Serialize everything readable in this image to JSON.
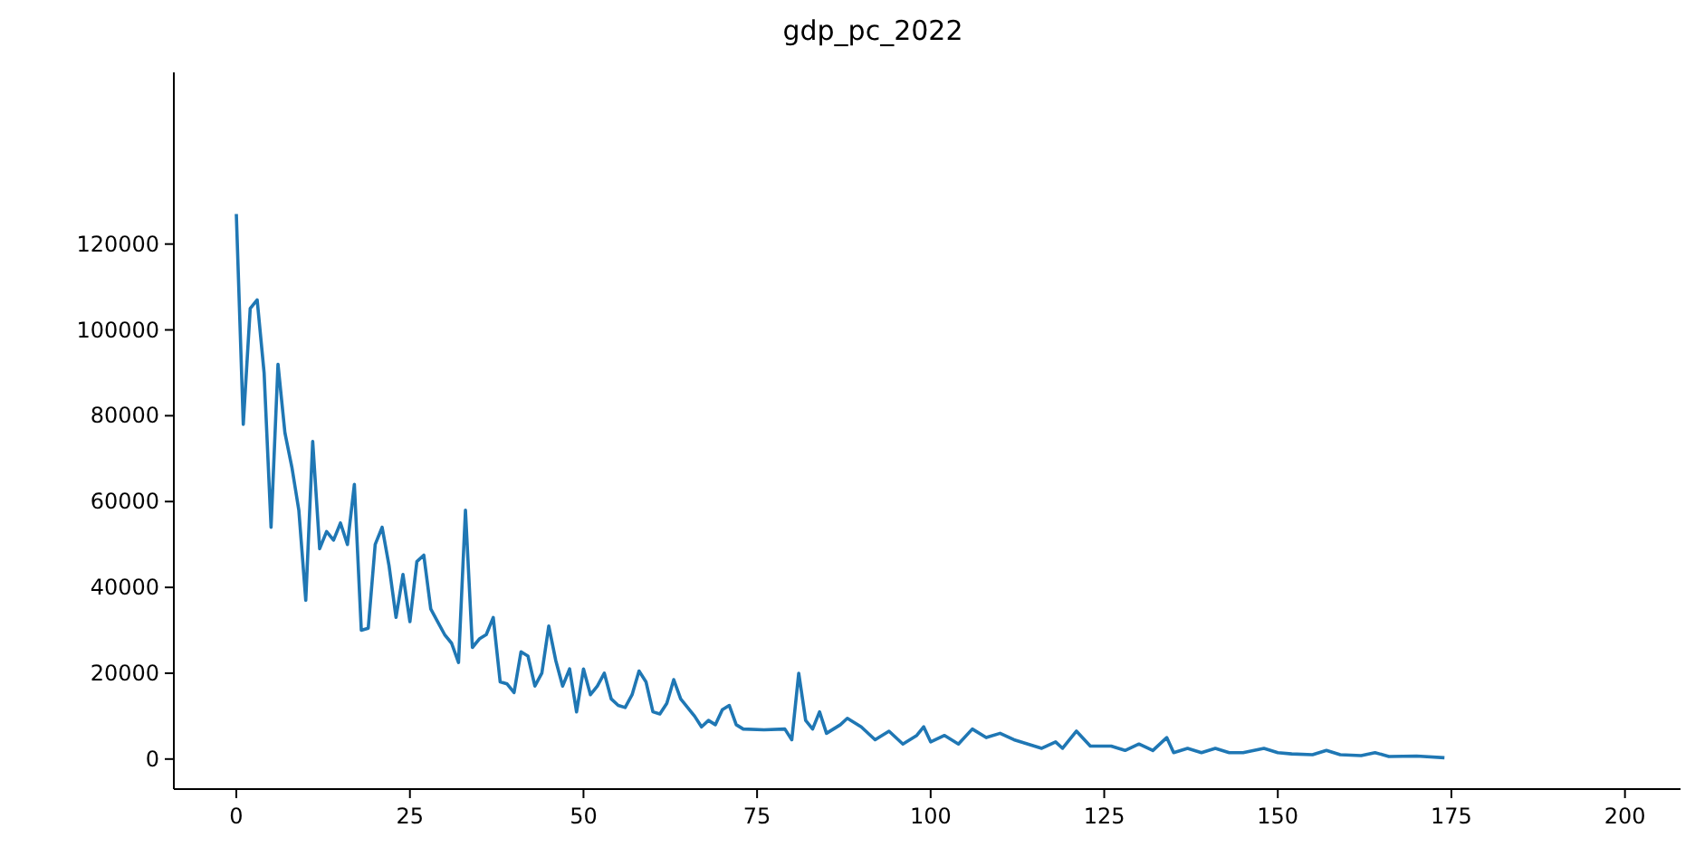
{
  "chart_data": {
    "type": "line",
    "title": "gdp_pc_2022",
    "xlim": [
      -9,
      208
    ],
    "ylim": [
      -7000,
      160000
    ],
    "xticks": [
      0,
      25,
      50,
      75,
      100,
      125,
      150,
      175,
      200
    ],
    "yticks": [
      0,
      20000,
      40000,
      60000,
      80000,
      100000,
      120000
    ],
    "marker": "none",
    "line_style": "solid",
    "series": [
      {
        "color": "#1f77b4",
        "x": [
          0,
          1,
          2,
          3,
          4,
          5,
          6,
          7,
          8,
          9,
          10,
          11,
          12,
          13,
          14,
          15,
          16,
          17,
          18,
          19,
          20,
          21,
          22,
          23,
          24,
          25,
          26,
          27,
          28,
          29,
          30,
          31,
          32,
          33,
          34,
          35,
          36,
          37,
          38,
          39,
          40,
          41,
          42,
          43,
          44,
          45,
          46,
          47,
          48,
          49,
          50,
          51,
          52,
          53,
          54,
          55,
          56,
          57,
          58,
          59,
          60,
          61,
          62,
          63,
          64,
          65,
          66,
          67,
          68,
          69,
          70,
          71,
          72,
          73,
          76,
          79,
          80,
          81,
          82,
          83,
          84,
          85,
          87,
          88,
          90,
          92,
          94,
          96,
          98,
          99,
          100,
          102,
          104,
          106,
          108,
          110,
          112,
          114,
          116,
          118,
          119,
          121,
          123,
          126,
          128,
          130,
          132,
          134,
          135,
          137,
          139,
          141,
          143,
          145,
          148,
          150,
          152,
          155,
          157,
          159,
          162,
          164,
          166,
          170,
          174
        ],
        "values": [
          127000,
          78000,
          105000,
          107000,
          90000,
          54000,
          92000,
          76000,
          68000,
          58000,
          37000,
          74000,
          49000,
          53000,
          51000,
          55000,
          50000,
          64000,
          30000,
          30500,
          50000,
          54000,
          45000,
          33000,
          43000,
          32000,
          46000,
          47500,
          35000,
          32000,
          29000,
          27000,
          22500,
          58000,
          26000,
          28000,
          29000,
          33000,
          18000,
          17500,
          15500,
          25000,
          24000,
          17000,
          20000,
          31000,
          23000,
          17000,
          21000,
          11000,
          21000,
          15000,
          17000,
          20000,
          14000,
          12500,
          12000,
          15000,
          20500,
          18000,
          11000,
          10500,
          13000,
          18500,
          14000,
          12000,
          10000,
          7500,
          9000,
          8000,
          11500,
          12500,
          8000,
          7000,
          6800,
          7000,
          4500,
          20000,
          9000,
          7000,
          11000,
          6000,
          8000,
          9500,
          7500,
          4500,
          6500,
          3500,
          5500,
          7500,
          4000,
          5500,
          3500,
          7000,
          5000,
          6000,
          4500,
          3500,
          2500,
          4000,
          2500,
          6500,
          3000,
          3000,
          2000,
          3500,
          2000,
          5000,
          1500,
          2500,
          1500,
          2500,
          1500,
          1500,
          2500,
          1500,
          1200,
          1000,
          2000,
          1000,
          800,
          1500,
          600,
          700,
          300
        ]
      }
    ]
  }
}
